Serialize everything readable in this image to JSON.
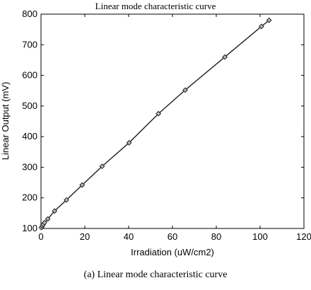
{
  "chart_data": {
    "type": "line",
    "title": "Linear mode characteristic curve",
    "xlabel": "Irradiation (uW/cm2)",
    "ylabel": "Linear Output (mV)",
    "xlim": [
      0,
      120
    ],
    "ylim": [
      100,
      800
    ],
    "xticks": [
      "0",
      "20",
      "40",
      "60",
      "80",
      "100",
      "120"
    ],
    "yticks": [
      "100",
      "200",
      "300",
      "400",
      "500",
      "600",
      "700",
      "800"
    ],
    "grid": false,
    "series": [
      {
        "x": [
          0.2,
          0.6,
          1.0,
          1.6,
          3.1,
          6.2,
          11.6,
          18.8,
          27.9,
          40.2,
          53.6,
          65.8,
          83.9,
          100.6,
          104.1
        ],
        "y": [
          103,
          108,
          113,
          119,
          131,
          157,
          193,
          242,
          303,
          380,
          475,
          552,
          660,
          760,
          780
        ]
      }
    ]
  },
  "caption": "(a) Linear mode characteristic curve"
}
